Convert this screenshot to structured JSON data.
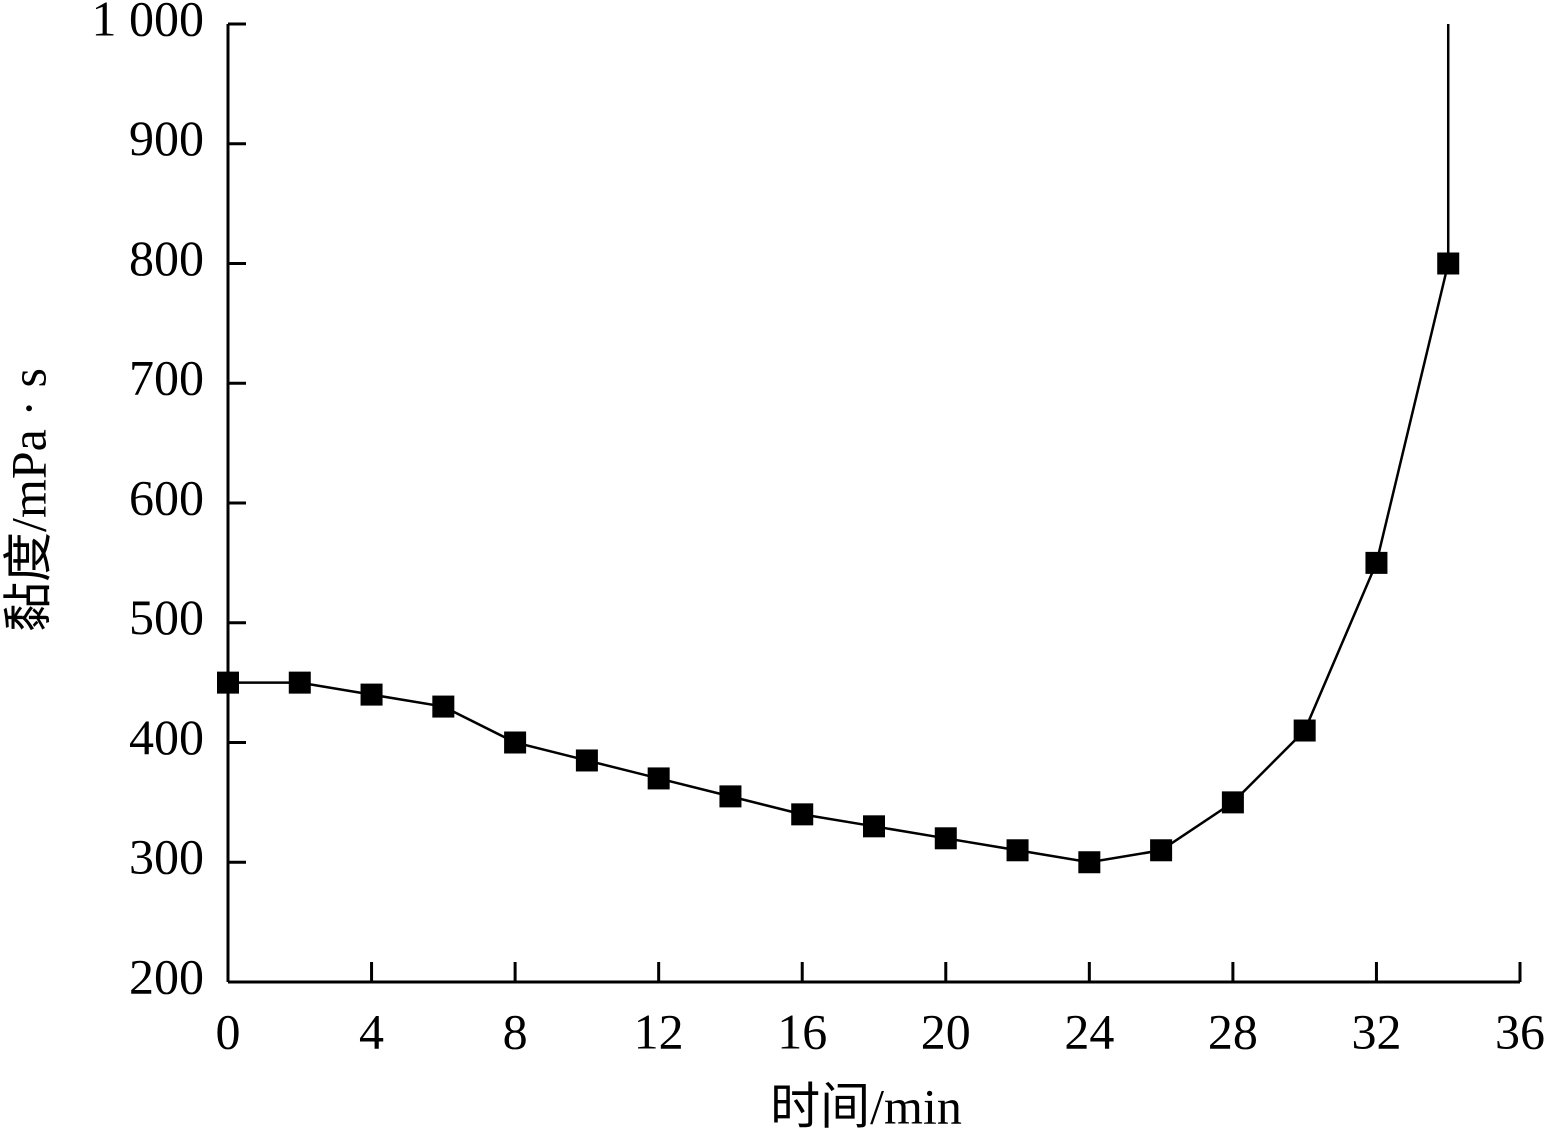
{
  "chart_data": {
    "type": "line",
    "xlabel": "时间/min",
    "ylabel": "黏度/mPa · s",
    "x": [
      0,
      2,
      4,
      6,
      8,
      10,
      12,
      14,
      16,
      18,
      20,
      22,
      24,
      26,
      28,
      30,
      32,
      34
    ],
    "values": [
      450,
      450,
      440,
      430,
      400,
      385,
      370,
      355,
      340,
      330,
      320,
      310,
      300,
      310,
      350,
      410,
      550,
      800
    ],
    "y_errors_upper": [
      null,
      null,
      null,
      null,
      null,
      null,
      null,
      null,
      null,
      null,
      null,
      null,
      null,
      null,
      null,
      null,
      null,
      200
    ],
    "color": "#000000",
    "marker": "square",
    "xlim": [
      0,
      36
    ],
    "xticks": [
      0,
      4,
      8,
      12,
      16,
      20,
      24,
      28,
      32,
      36
    ],
    "ylim": [
      200,
      1000
    ],
    "yticks": [
      200,
      300,
      400,
      500,
      600,
      700,
      800,
      900,
      {
        "value": 1000,
        "label": "1 000"
      }
    ],
    "grid": false
  }
}
